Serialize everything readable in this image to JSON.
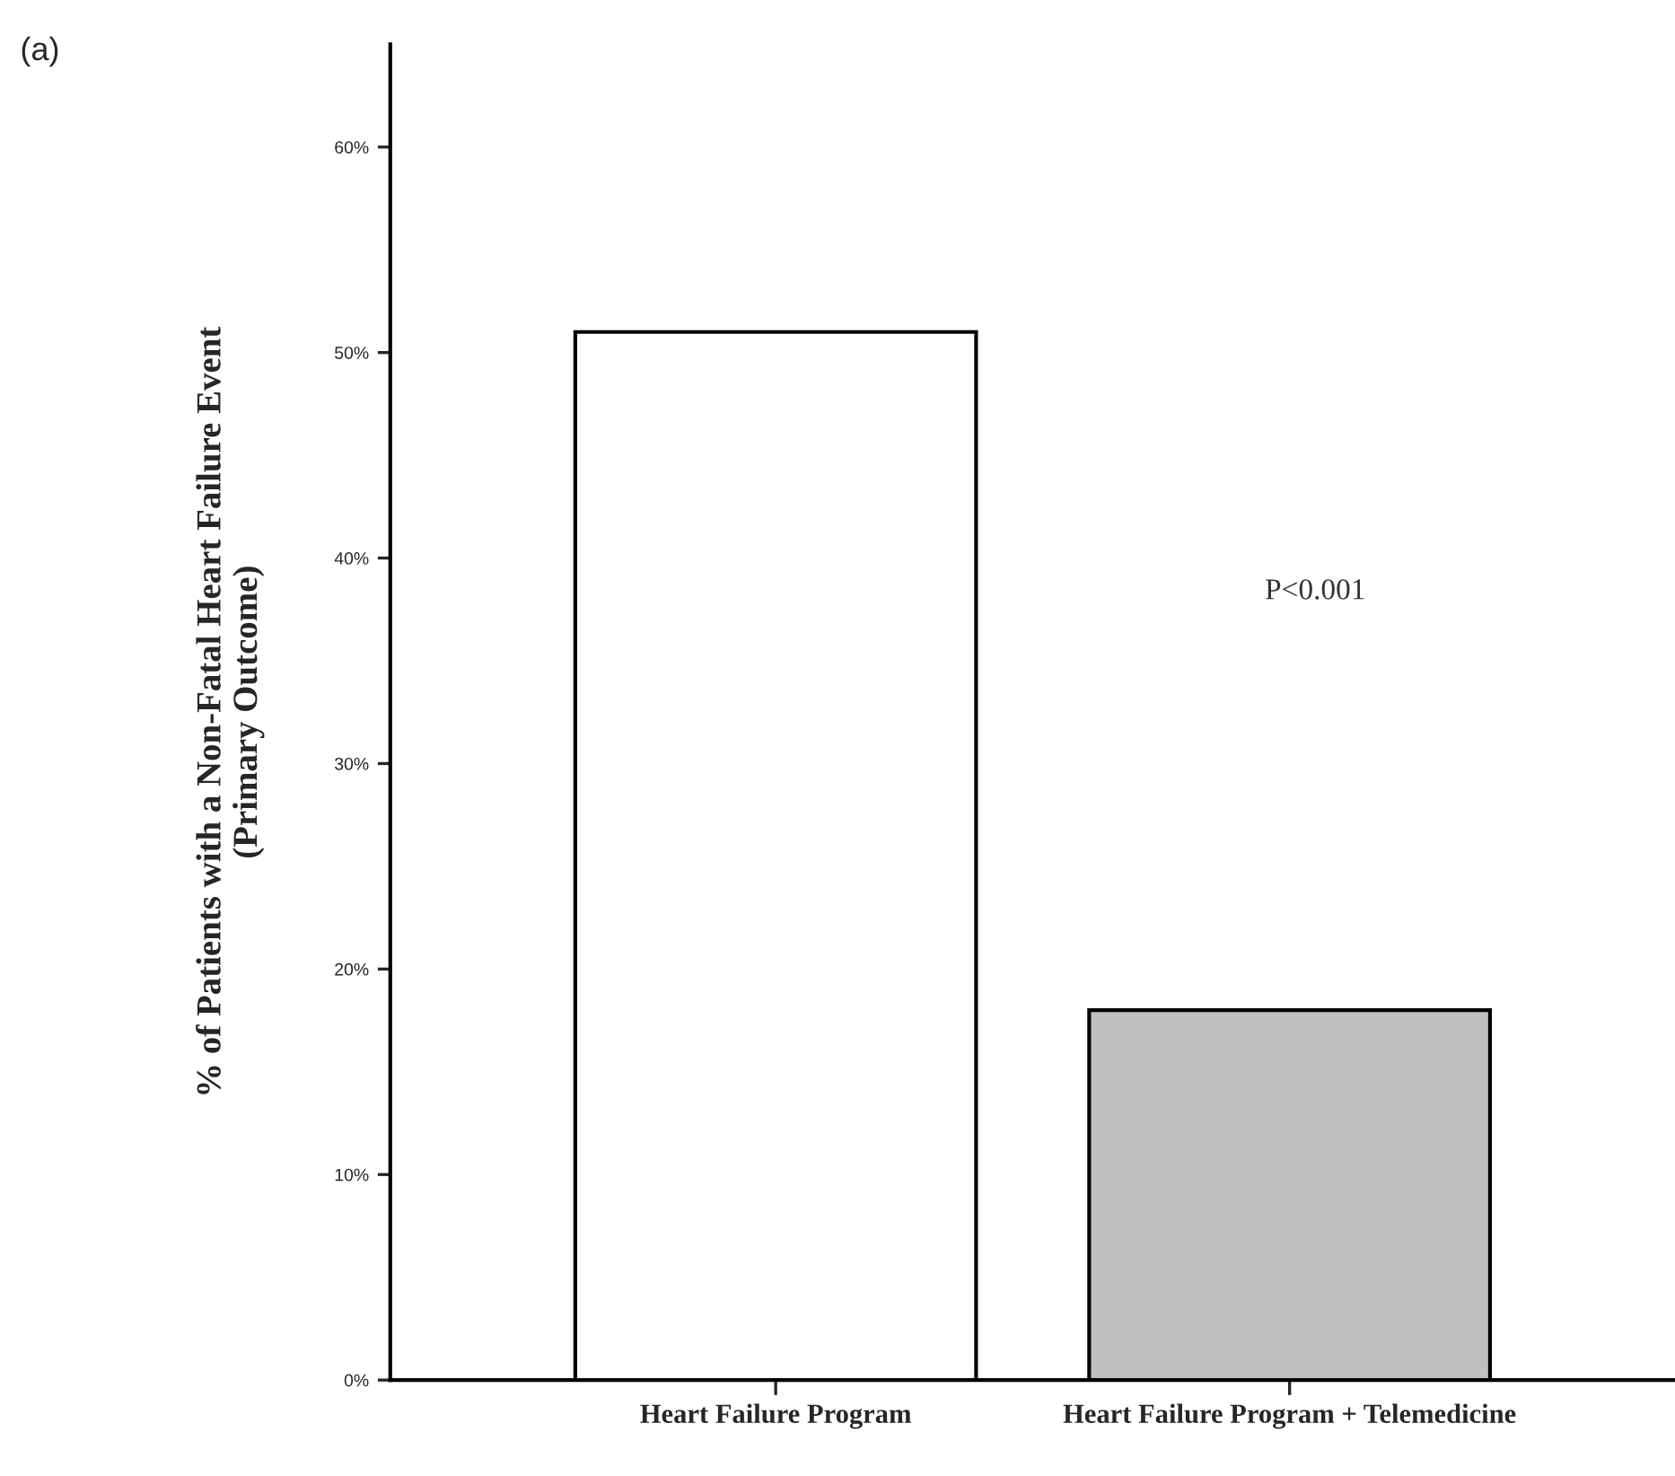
{
  "chart_data": {
    "type": "bar",
    "ylabel": "% of Patients with a Non-Fatal Heart Failure Event\n(Primary Outcome)",
    "categories": [
      "Heart Failure Program",
      "Heart Failure Program + Telemedicine"
    ],
    "values": [
      51,
      18
    ],
    "colors": [
      "#ffffff",
      "#c0c0c0"
    ],
    "ylim": [
      0,
      65
    ],
    "yticks": [
      {
        "value": 0,
        "label": "0%"
      },
      {
        "value": 10,
        "label": "10%"
      },
      {
        "value": 20,
        "label": "20%"
      },
      {
        "value": 30,
        "label": "30%"
      },
      {
        "value": 40,
        "label": "40%"
      },
      {
        "value": 50,
        "label": "50%"
      },
      {
        "value": 60,
        "label": "60%"
      }
    ],
    "grid": false,
    "legend": false,
    "annotations": [
      "(a)",
      "P<0.001"
    ]
  }
}
